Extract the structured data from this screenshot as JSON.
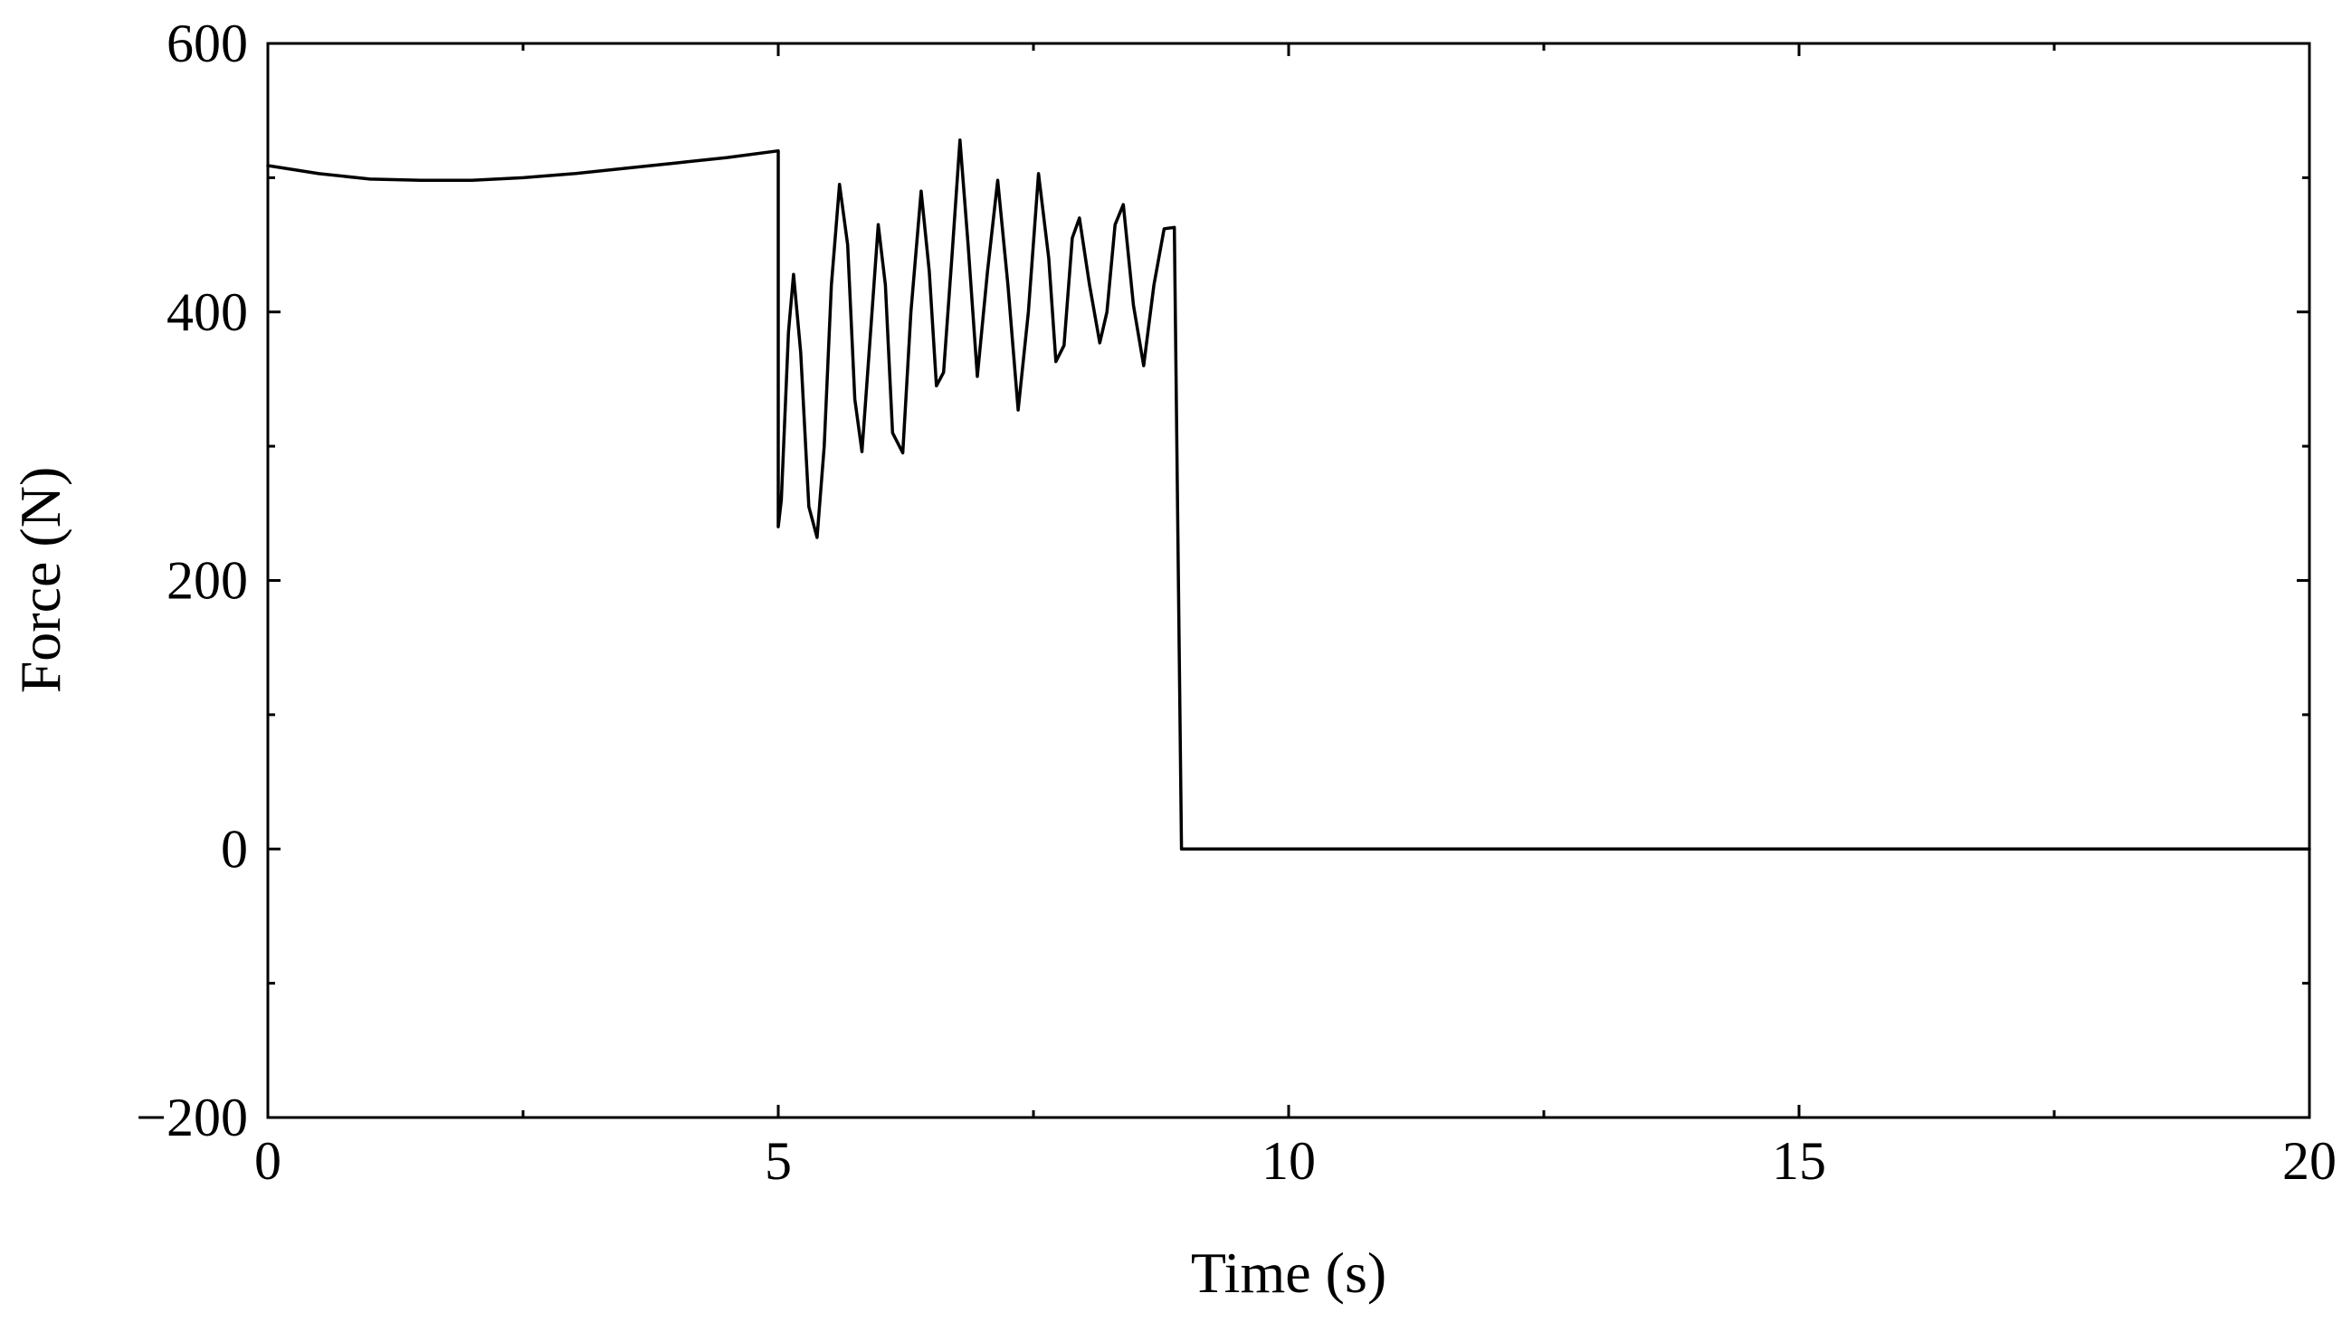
{
  "chart_data": {
    "type": "line",
    "title": "",
    "xlabel": "Time (s)",
    "ylabel": "Force (N)",
    "xlim": [
      0,
      20
    ],
    "ylim": [
      -200,
      600
    ],
    "x_ticks": [
      0,
      5,
      10,
      15,
      20
    ],
    "y_ticks": [
      -200,
      0,
      200,
      400,
      600
    ],
    "x_tick_labels": [
      "0",
      "5",
      "10",
      "15",
      "20"
    ],
    "y_tick_labels": [
      "−200",
      "0",
      "200",
      "400",
      "600"
    ],
    "x_minor_step": 2.5,
    "y_minor_step": 100,
    "grid": false,
    "legend": "none",
    "line_color": "#000000",
    "series": [
      {
        "x": [
          0,
          0.5,
          1.0,
          1.5,
          2.0,
          2.5,
          3.0,
          3.5,
          4.0,
          4.5,
          5.0,
          5.0,
          5.03,
          5.1,
          5.15,
          5.22,
          5.3,
          5.38,
          5.45,
          5.52,
          5.6,
          5.68,
          5.75,
          5.82,
          5.9,
          5.98,
          6.05,
          6.12,
          6.22,
          6.3,
          6.4,
          6.48,
          6.55,
          6.62,
          6.7,
          6.78,
          6.86,
          6.95,
          7.05,
          7.15,
          7.25,
          7.35,
          7.45,
          7.55,
          7.65,
          7.72,
          7.8,
          7.88,
          7.95,
          8.05,
          8.15,
          8.22,
          8.3,
          8.38,
          8.48,
          8.58,
          8.68,
          8.78,
          8.88,
          8.95,
          9.05,
          9.15,
          9.25,
          9.35,
          9.45,
          9.52,
          9.6,
          9.7,
          9.8,
          9.9,
          10.0,
          10.0,
          11.2,
          20.0
        ],
        "y": [
          509,
          503,
          499,
          498,
          498,
          500,
          503,
          507,
          511,
          515,
          520,
          240,
          260,
          385,
          428,
          370,
          255,
          232,
          300,
          420,
          495,
          450,
          335,
          296,
          380,
          465,
          420,
          310,
          295,
          400,
          490,
          430,
          345,
          355,
          440,
          528,
          450,
          352,
          430,
          498,
          420,
          327,
          400,
          503,
          440,
          363,
          375,
          455,
          470,
          420,
          377,
          400,
          465,
          480,
          405,
          360,
          420,
          462,
          463,
          0,
          0,
          0,
          0,
          0,
          0,
          0,
          0,
          0,
          0,
          0,
          0,
          0,
          0,
          0
        ]
      }
    ]
  }
}
